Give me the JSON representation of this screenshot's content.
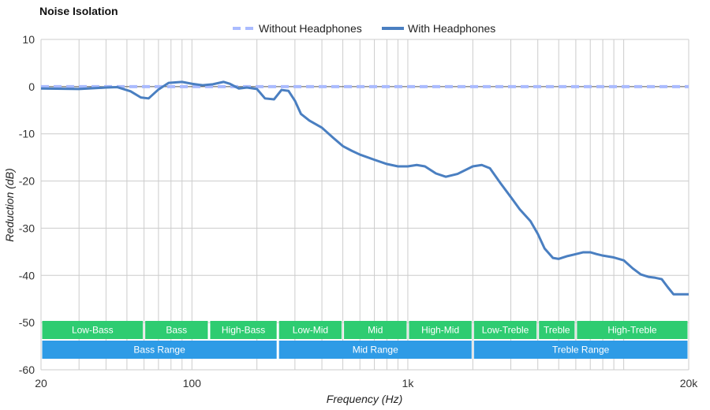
{
  "chart_data": {
    "type": "line",
    "title": "Noise Isolation",
    "xlabel": "Frequency (Hz)",
    "ylabel": "Reduction (dB)",
    "x_scale": "log",
    "xlim": [
      20,
      20000
    ],
    "ylim": [
      -60,
      10
    ],
    "x_ticks": [
      {
        "value": 20,
        "label": "20"
      },
      {
        "value": 100,
        "label": "100"
      },
      {
        "value": 1000,
        "label": "1k"
      },
      {
        "value": 20000,
        "label": "20k"
      }
    ],
    "y_ticks": [
      {
        "value": 10,
        "label": "10"
      },
      {
        "value": 0,
        "label": "0"
      },
      {
        "value": -10,
        "label": "-10"
      },
      {
        "value": -20,
        "label": "-20"
      },
      {
        "value": -30,
        "label": "-30"
      },
      {
        "value": -40,
        "label": "-40"
      },
      {
        "value": -50,
        "label": "-50"
      },
      {
        "value": -60,
        "label": "-60"
      }
    ],
    "grid": true,
    "legend_position": "top-center",
    "series": [
      {
        "name": "Without Headphones",
        "color": "#aabbff",
        "style": "dashed",
        "x": [
          20,
          20000
        ],
        "y": [
          0,
          0
        ]
      },
      {
        "name": "With Headphones",
        "color": "#4a7fc1",
        "style": "solid",
        "x": [
          20,
          30,
          40,
          45,
          52,
          58,
          63,
          70,
          78,
          90,
          100,
          112,
          125,
          140,
          150,
          165,
          180,
          200,
          218,
          240,
          260,
          280,
          300,
          320,
          350,
          400,
          450,
          500,
          550,
          600,
          700,
          800,
          900,
          1000,
          1100,
          1200,
          1350,
          1500,
          1700,
          2000,
          2200,
          2400,
          2700,
          3000,
          3300,
          3700,
          4000,
          4300,
          4700,
          5000,
          5500,
          6000,
          6500,
          7000,
          7500,
          8000,
          9000,
          10000,
          11000,
          12000,
          13000,
          14000,
          15000,
          16000,
          17000,
          18000,
          19000,
          20000
        ],
        "y": [
          -0.4,
          -0.5,
          -0.2,
          -0.1,
          -1.0,
          -2.3,
          -2.5,
          -0.6,
          0.8,
          1.0,
          0.6,
          0.3,
          0.5,
          1.0,
          0.6,
          -0.4,
          -0.2,
          -0.5,
          -2.5,
          -2.7,
          -0.7,
          -0.9,
          -3.0,
          -5.8,
          -7.2,
          -8.7,
          -10.8,
          -12.6,
          -13.6,
          -14.4,
          -15.5,
          -16.4,
          -16.9,
          -16.9,
          -16.6,
          -16.9,
          -18.4,
          -19.1,
          -18.5,
          -16.9,
          -16.6,
          -17.3,
          -20.6,
          -23.4,
          -26.0,
          -28.5,
          -31.2,
          -34.3,
          -36.3,
          -36.5,
          -35.9,
          -35.5,
          -35.1,
          -35.1,
          -35.5,
          -35.8,
          -36.2,
          -36.8,
          -38.5,
          -39.8,
          -40.3,
          -40.5,
          -40.8,
          -42.5,
          -44.0,
          -44.0,
          -44.0,
          -44.0
        ]
      }
    ],
    "range_bands": {
      "band_color": "#2ecc71",
      "range_color": "#2e9be6",
      "bands": [
        {
          "label": "Low-Bass",
          "from": 20,
          "to": 60
        },
        {
          "label": "Bass",
          "from": 60,
          "to": 120
        },
        {
          "label": "High-Bass",
          "from": 120,
          "to": 250
        },
        {
          "label": "Low-Mid",
          "from": 250,
          "to": 500
        },
        {
          "label": "Mid",
          "from": 500,
          "to": 1000
        },
        {
          "label": "High-Mid",
          "from": 1000,
          "to": 2000
        },
        {
          "label": "Low-Treble",
          "from": 2000,
          "to": 4000
        },
        {
          "label": "Treble",
          "from": 4000,
          "to": 6000
        },
        {
          "label": "High-Treble",
          "from": 6000,
          "to": 20000
        }
      ],
      "ranges": [
        {
          "label": "Bass Range",
          "from": 20,
          "to": 250
        },
        {
          "label": "Mid Range",
          "from": 250,
          "to": 2000
        },
        {
          "label": "Treble Range",
          "from": 2000,
          "to": 20000
        }
      ]
    }
  }
}
